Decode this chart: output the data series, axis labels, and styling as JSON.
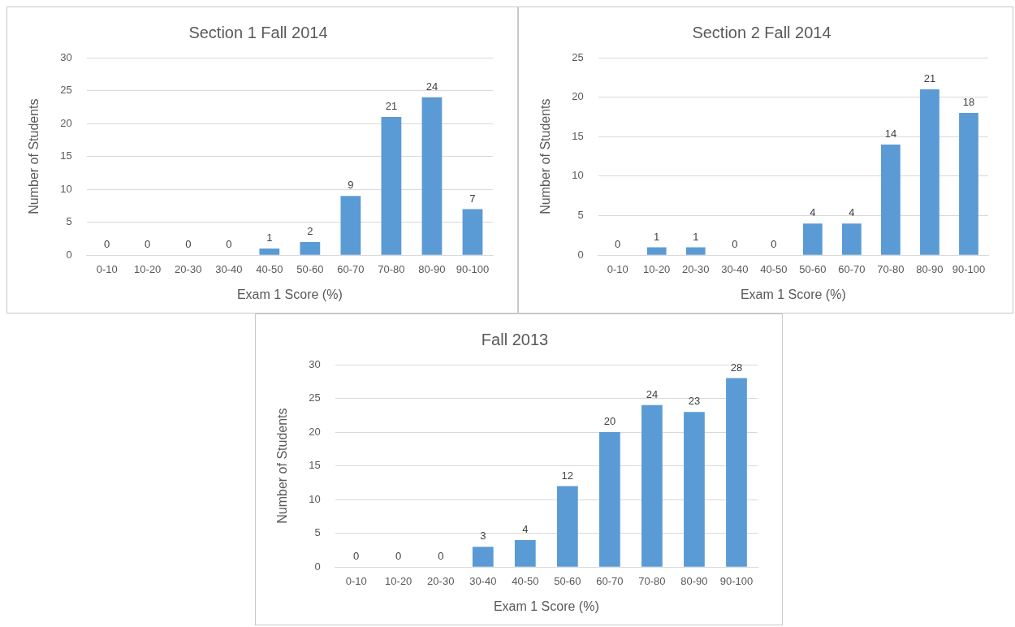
{
  "chart_data": [
    {
      "type": "bar",
      "title": "Section 1 Fall 2014",
      "xlabel": "Exam 1 Score (%)",
      "ylabel": "Number of Students",
      "categories": [
        "0-10",
        "10-20",
        "20-30",
        "30-40",
        "40-50",
        "50-60",
        "60-70",
        "70-80",
        "80-90",
        "90-100"
      ],
      "values": [
        0,
        0,
        0,
        0,
        1,
        2,
        9,
        21,
        24,
        7
      ],
      "color": "#5b9bd5",
      "ylim": [
        0,
        30
      ],
      "yticks": [
        0,
        5,
        10,
        15,
        20,
        25,
        30
      ],
      "grid": "y",
      "data_labels": true
    },
    {
      "type": "bar",
      "title": "Section 2 Fall 2014",
      "xlabel": "Exam 1 Score (%)",
      "ylabel": "Number of Students",
      "categories": [
        "0-10",
        "10-20",
        "20-30",
        "30-40",
        "40-50",
        "50-60",
        "60-70",
        "70-80",
        "80-90",
        "90-100"
      ],
      "values": [
        0,
        1,
        1,
        0,
        0,
        4,
        4,
        14,
        21,
        18
      ],
      "color": "#5b9bd5",
      "ylim": [
        0,
        25
      ],
      "yticks": [
        0,
        5,
        10,
        15,
        20,
        25
      ],
      "grid": "y",
      "data_labels": true
    },
    {
      "type": "bar",
      "title": "Fall 2013",
      "xlabel": "Exam 1 Score (%)",
      "ylabel": "Number of Students",
      "categories": [
        "0-10",
        "10-20",
        "20-30",
        "30-40",
        "40-50",
        "50-60",
        "60-70",
        "70-80",
        "80-90",
        "90-100"
      ],
      "values": [
        0,
        0,
        0,
        3,
        4,
        12,
        20,
        24,
        23,
        28
      ],
      "color": "#5b9bd5",
      "ylim": [
        0,
        30
      ],
      "yticks": [
        0,
        5,
        10,
        15,
        20,
        25,
        30
      ],
      "grid": "y",
      "data_labels": true
    }
  ]
}
